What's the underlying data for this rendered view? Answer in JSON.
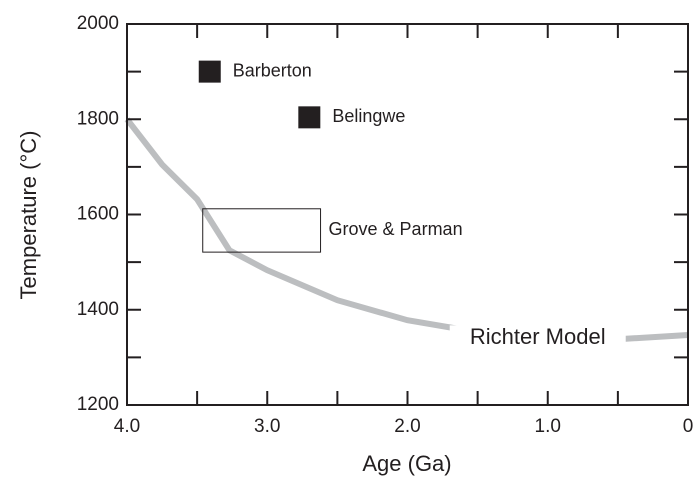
{
  "chart_data": {
    "type": "scatter",
    "xlabel": "Age (Ga)",
    "ylabel": "Temperature (°C)",
    "xlim": [
      4,
      0
    ],
    "ylim": [
      1200,
      2000
    ],
    "xticks": [
      {
        "value": 4,
        "label": "4.0"
      },
      {
        "value": 3,
        "label": "3.0"
      },
      {
        "value": 2,
        "label": "2.0"
      },
      {
        "value": 1,
        "label": "1.0"
      },
      0
    ],
    "xminorticks": [
      3.5,
      2.5,
      1.5,
      0.5
    ],
    "yticks": [
      1200,
      1400,
      1600,
      1800,
      2000
    ],
    "yminorticks": [
      1300,
      1500,
      1700,
      1900
    ],
    "series": [
      {
        "name": "Barberton",
        "kind": "square",
        "color": "#231f20",
        "x": [
          3.41
        ],
        "values": [
          1900
        ]
      },
      {
        "name": "Belingwe",
        "kind": "square",
        "color": "#231f20",
        "x": [
          2.7
        ],
        "values": [
          1804
        ]
      },
      {
        "name": "Grove & Parman",
        "kind": "rect",
        "color": "#231f20",
        "x": [
          3.46,
          2.62
        ],
        "values": [
          1612,
          1521
        ]
      },
      {
        "name": "Richter Model",
        "kind": "line",
        "color": "#bcbec0",
        "x": [
          4.0,
          3.75,
          3.5,
          3.27,
          3.0,
          2.5,
          2.0,
          1.5,
          1.0,
          0.5,
          0
        ],
        "values": [
          1800,
          1705,
          1632,
          1525,
          1483,
          1420,
          1378,
          1353,
          1340,
          1338,
          1347
        ]
      }
    ]
  }
}
